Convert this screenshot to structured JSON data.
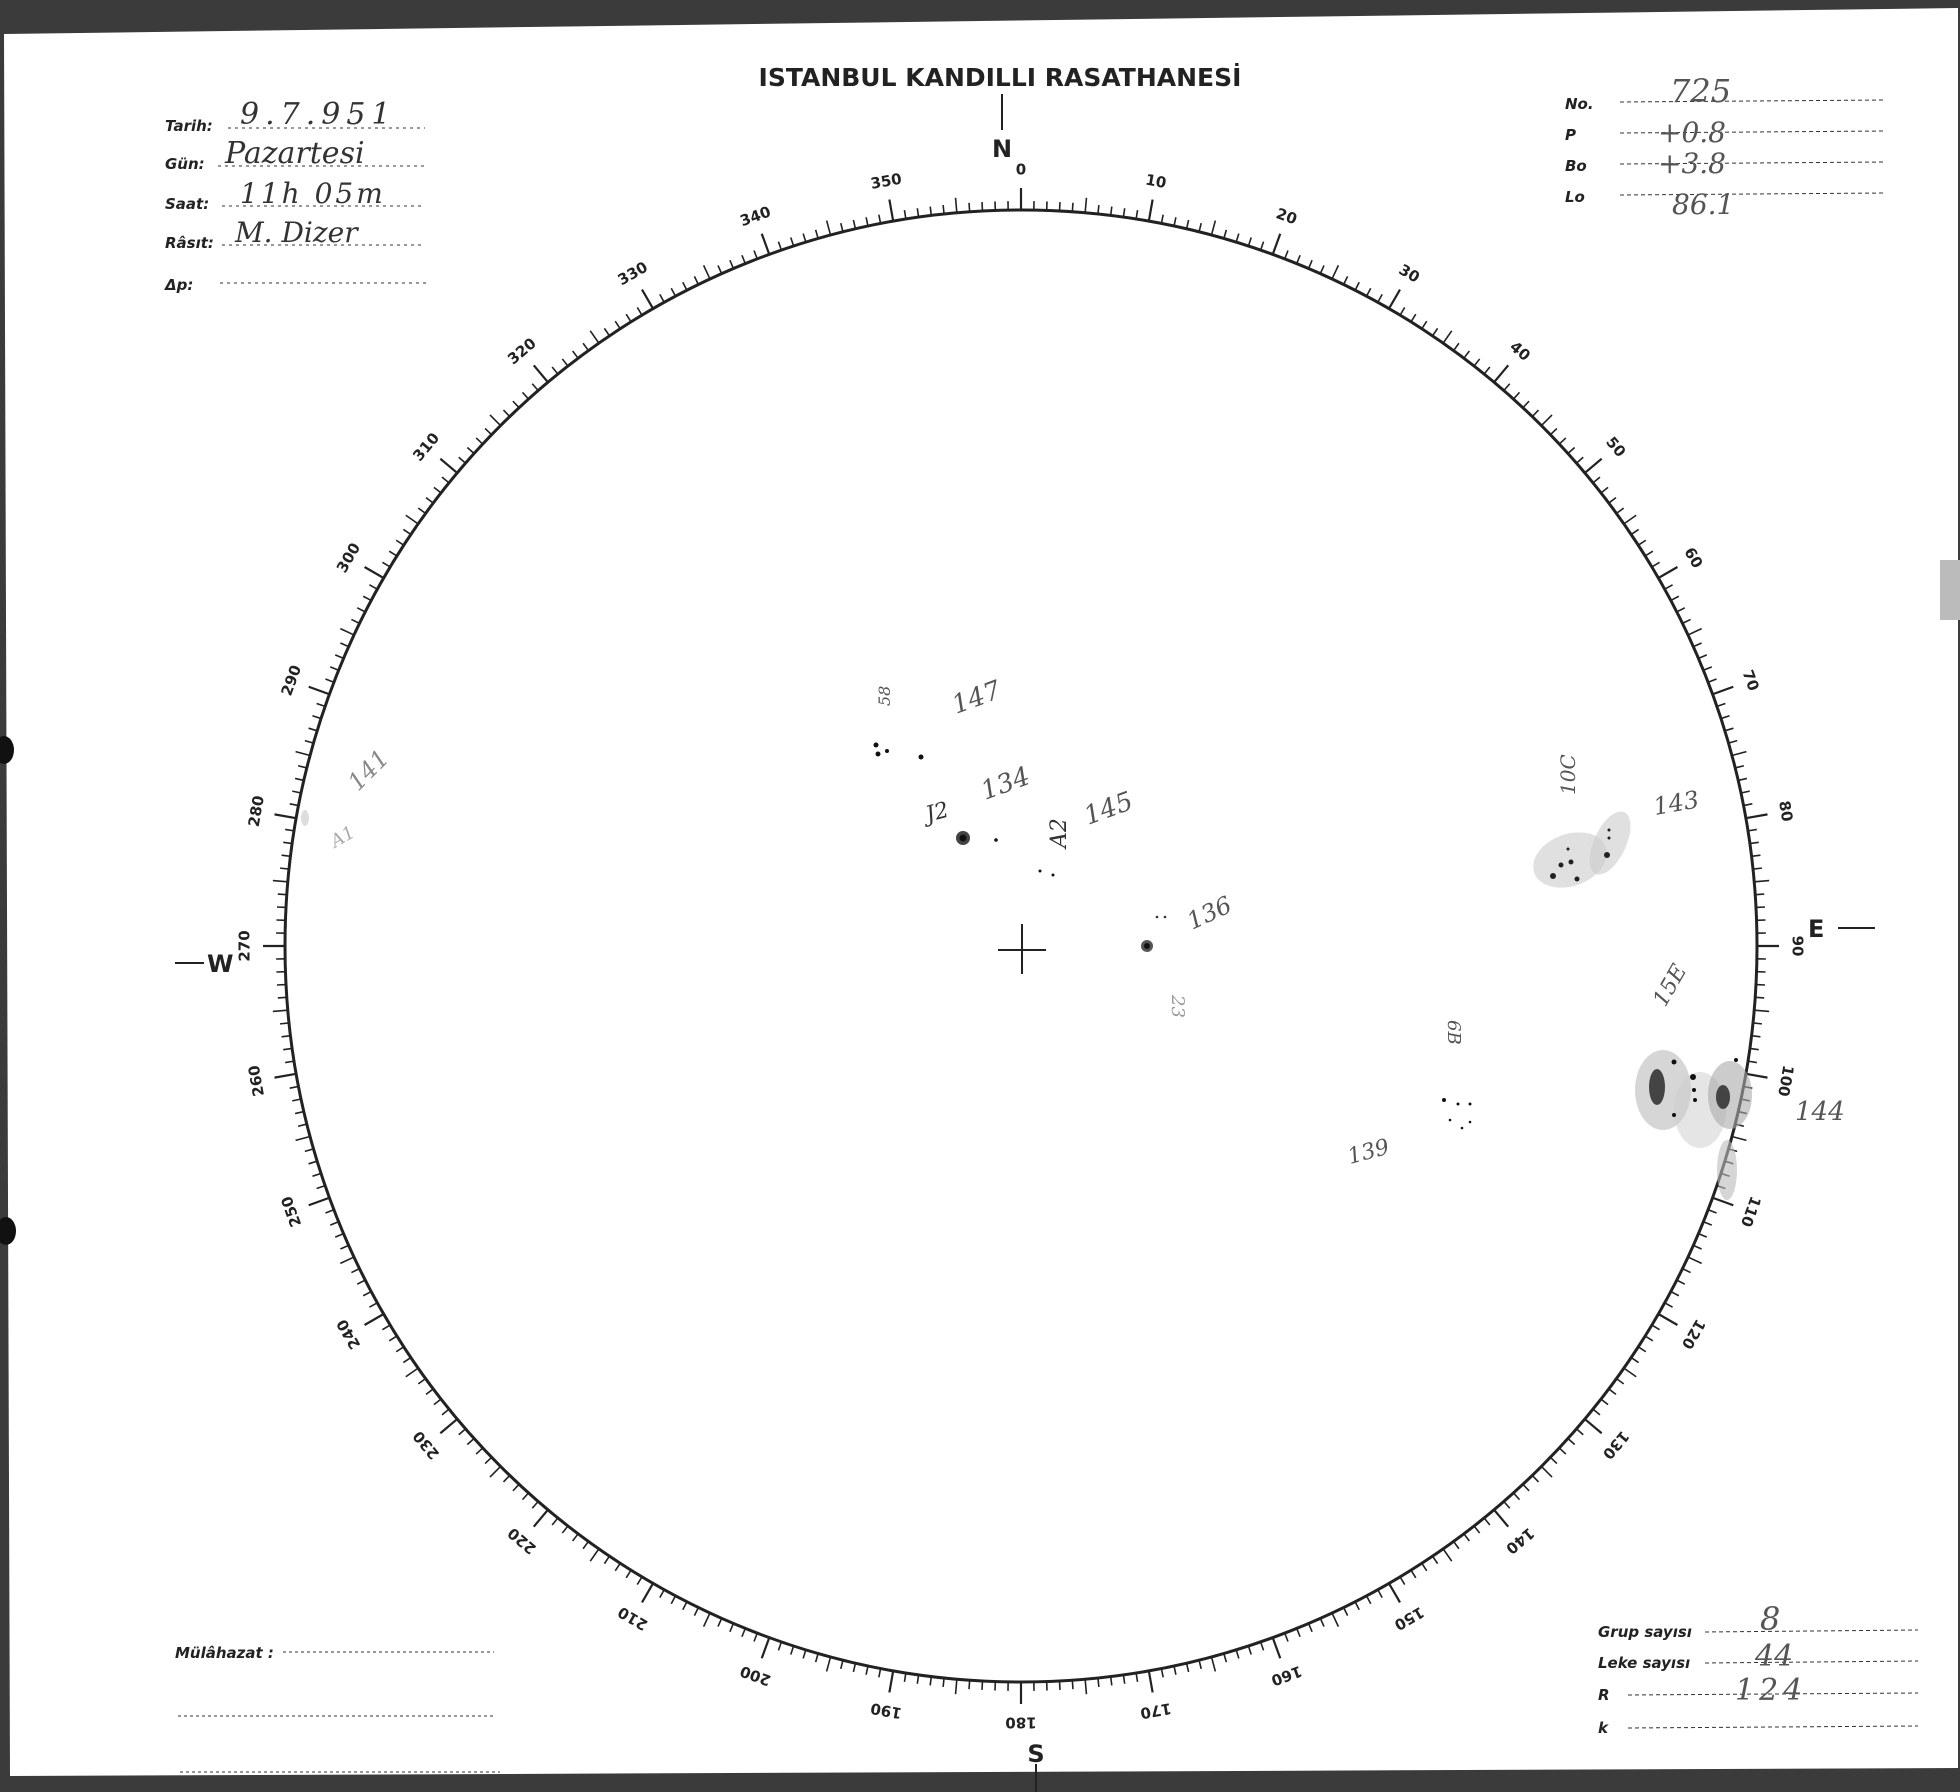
{
  "header": {
    "title": "ISTANBUL KANDILLI RASATHANESİ"
  },
  "left_fields": [
    {
      "label": "Tarih:",
      "value": "9.7.951"
    },
    {
      "label": "Gün:",
      "value": "Pazartesi"
    },
    {
      "label": "Saat:",
      "value": "11h 05m"
    },
    {
      "label": "Râsıt:",
      "value": "M. Dizer"
    },
    {
      "label": "Δp:",
      "value": ""
    }
  ],
  "right_fields": [
    {
      "label": "No.",
      "value": "725"
    },
    {
      "label": "P",
      "value": "+0.8"
    },
    {
      "label": "Bo",
      "value": "+3.8"
    },
    {
      "label": "Lo",
      "value": "86.1"
    }
  ],
  "summary_fields": [
    {
      "label": "Grup sayısı",
      "value": "8"
    },
    {
      "label": "Leke sayısı",
      "value": "44"
    },
    {
      "label": "R",
      "value": "124"
    },
    {
      "label": "k",
      "value": ""
    }
  ],
  "remarks": {
    "label": "Mülâhazat :",
    "value": ""
  },
  "compass": {
    "north": "N",
    "south": "S",
    "east": "E",
    "west": "W"
  },
  "tick_labels": [
    "0",
    "10",
    "20",
    "30",
    "40",
    "50",
    "60",
    "70",
    "80",
    "90",
    "100",
    "110",
    "120",
    "130",
    "140",
    "150",
    "160",
    "170",
    "180",
    "190",
    "200",
    "210",
    "220",
    "230",
    "240",
    "250",
    "260",
    "270",
    "280",
    "290",
    "300",
    "310",
    "320",
    "330",
    "340",
    "350"
  ],
  "sunspot_groups": [
    {
      "number": "147",
      "class": "58"
    },
    {
      "number": "134",
      "class": "J2"
    },
    {
      "number": "145",
      "class": "A2"
    },
    {
      "number": "136",
      "class": "23"
    },
    {
      "number": "143",
      "class": "10C"
    },
    {
      "number": "144",
      "class": "15E"
    },
    {
      "number": "139",
      "class": "6B"
    },
    {
      "number": "141",
      "class": "A1"
    }
  ],
  "colors": {
    "paper": "#ffffff",
    "frame": "#3b3b3b",
    "ink": "#222222",
    "pencil": "#666666"
  }
}
